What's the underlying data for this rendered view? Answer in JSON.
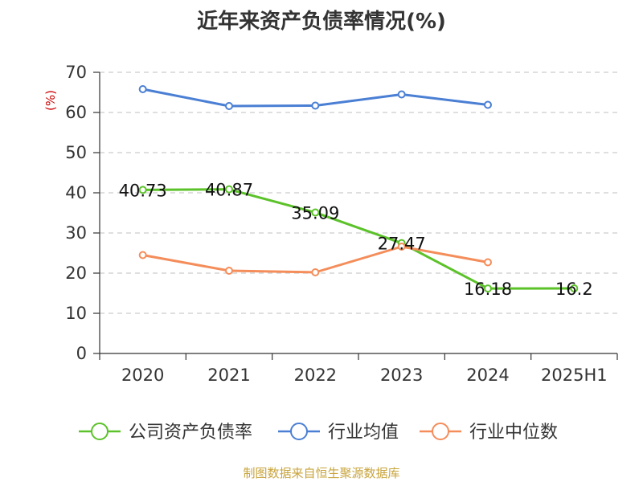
{
  "chart_data": {
    "type": "line",
    "title": "近年来资产负债率情况(%)",
    "ylabel": "(%)",
    "categories": [
      "2020",
      "2021",
      "2022",
      "2023",
      "2024",
      "2025H1"
    ],
    "ylim": [
      0,
      70
    ],
    "yticks": [
      0,
      10,
      20,
      30,
      40,
      50,
      60,
      70
    ],
    "grid": true,
    "legend_position": "bottom",
    "series": [
      {
        "name": "公司资产负债率",
        "color": "#5cc22a",
        "values": [
          40.73,
          40.87,
          35.09,
          27.47,
          16.18,
          16.2
        ],
        "labels": [
          "40.73",
          "40.87",
          "35.09",
          "27.47",
          "16.18",
          "16.2"
        ]
      },
      {
        "name": "行业均值",
        "color": "#4a7fd4",
        "values": [
          65.8,
          61.6,
          61.7,
          64.5,
          61.9,
          null
        ]
      },
      {
        "name": "行业中位数",
        "color": "#f48d5a",
        "values": [
          24.5,
          20.6,
          20.2,
          26.6,
          22.7,
          null
        ]
      }
    ]
  },
  "source": "制图数据来自恒生聚源数据库"
}
